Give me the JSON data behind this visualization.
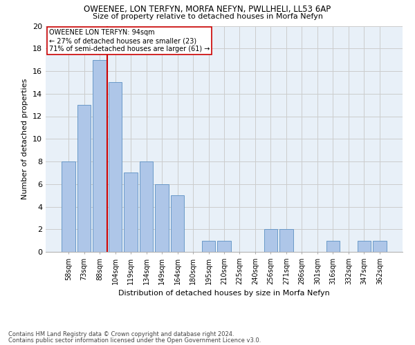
{
  "title1": "OWEENEE, LON TERFYN, MORFA NEFYN, PWLLHELI, LL53 6AP",
  "title2": "Size of property relative to detached houses in Morfa Nefyn",
  "xlabel": "Distribution of detached houses by size in Morfa Nefyn",
  "ylabel": "Number of detached properties",
  "categories": [
    "58sqm",
    "73sqm",
    "88sqm",
    "104sqm",
    "119sqm",
    "134sqm",
    "149sqm",
    "164sqm",
    "180sqm",
    "195sqm",
    "210sqm",
    "225sqm",
    "240sqm",
    "256sqm",
    "271sqm",
    "286sqm",
    "301sqm",
    "316sqm",
    "332sqm",
    "347sqm",
    "362sqm"
  ],
  "values": [
    8,
    13,
    17,
    15,
    7,
    8,
    6,
    5,
    0,
    1,
    1,
    0,
    0,
    2,
    2,
    0,
    0,
    1,
    0,
    1,
    1
  ],
  "bar_color": "#aec6e8",
  "bar_edge_color": "#5a8fc2",
  "bar_width": 0.85,
  "grid_color": "#cccccc",
  "background_color": "#e8f0f8",
  "annotation_line1": "OWEENEE LON TERFYN: 94sqm",
  "annotation_line2": "← 27% of detached houses are smaller (23)",
  "annotation_line3": "71% of semi-detached houses are larger (61) →",
  "red_line_x": 2.5,
  "red_line_color": "#cc0000",
  "ylim": [
    0,
    20
  ],
  "yticks": [
    0,
    2,
    4,
    6,
    8,
    10,
    12,
    14,
    16,
    18,
    20
  ],
  "footnote1": "Contains HM Land Registry data © Crown copyright and database right 2024.",
  "footnote2": "Contains public sector information licensed under the Open Government Licence v3.0."
}
